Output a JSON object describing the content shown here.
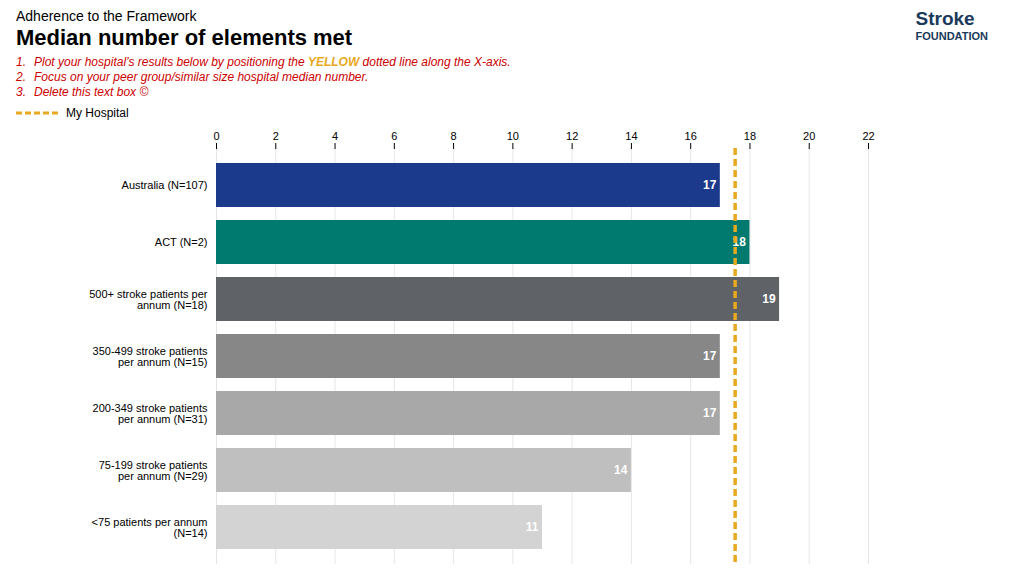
{
  "chart_data": {
    "type": "bar",
    "orientation": "horizontal",
    "subtitle": "Adherence to the Framework",
    "title": "Median number of elements met",
    "categories": [
      "Australia (N=107)",
      "ACT (N=2)",
      "500+ stroke patients per\nannum (N=18)",
      "350-499 stroke patients\nper annum (N=15)",
      "200-349 stroke patients\nper annum (N=31)",
      "75-199 stroke patients\nper annum (N=29)",
      "<75 patients per annum\n(N=14)"
    ],
    "values": [
      17,
      18,
      19,
      17,
      17,
      14,
      11
    ],
    "colors": [
      "#1b3a8c",
      "#007a6e",
      "#5f6368",
      "#878787",
      "#a8a8a8",
      "#bfbfbf",
      "#d3d3d3"
    ],
    "data_labels": true,
    "xlim": [
      0,
      22
    ],
    "xticks": [
      0,
      2,
      4,
      6,
      8,
      10,
      12,
      14,
      16,
      18,
      20,
      22
    ],
    "grid": true,
    "reference_line": {
      "name": "My Hospital",
      "value": 17.5,
      "color": "#e8a820",
      "line_style": "dashed"
    },
    "annotations": [
      {
        "parts": [
          {
            "text": "1.",
            "color": "#cc0000"
          },
          {
            "text": "Plot your hospital’s results below by positioning the ",
            "color": "#cc0000"
          },
          {
            "text": "YELLOW",
            "color": "#e8a820"
          },
          {
            "text": " dotted line along the X-axis.",
            "color": "#cc0000"
          }
        ]
      },
      {
        "parts": [
          {
            "text": "2.",
            "color": "#cc0000"
          },
          {
            "text": "Focus on your peer group/similar size hospital median number.",
            "color": "#cc0000"
          }
        ]
      },
      {
        "parts": [
          {
            "text": "3.",
            "color": "#cc0000"
          },
          {
            "text": "Delete this text box ©",
            "color": "#cc0000"
          }
        ]
      }
    ],
    "logo": [
      {
        "text": "Stroke",
        "color": "#1a3a5c"
      },
      {
        "text": "FOUNDATION",
        "color": "#1a3a5c"
      }
    ]
  }
}
